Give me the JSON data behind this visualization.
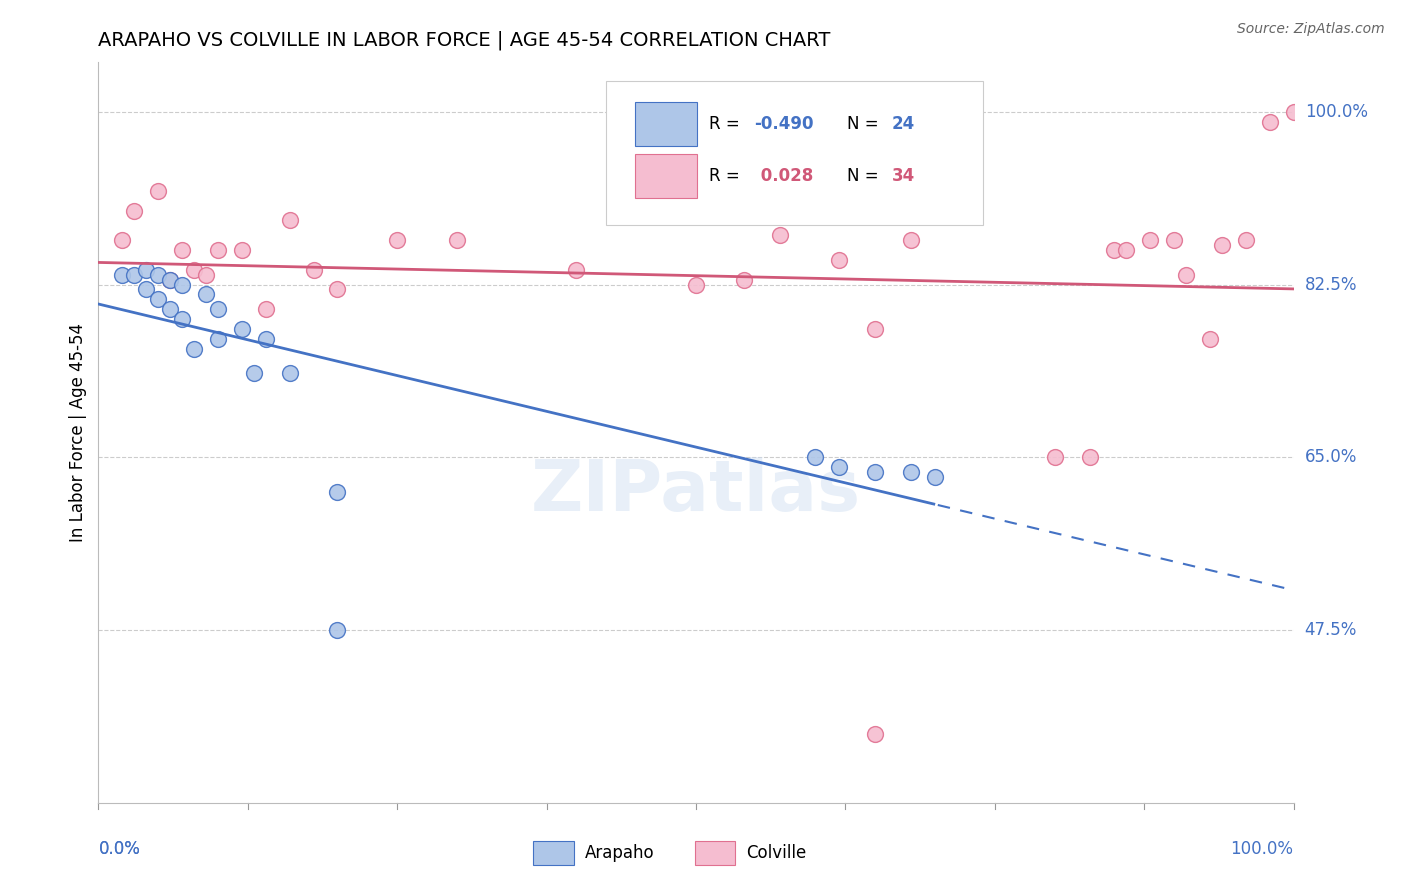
{
  "title": "ARAPAHO VS COLVILLE IN LABOR FORCE | AGE 45-54 CORRELATION CHART",
  "source": "Source: ZipAtlas.com",
  "ylabel": "In Labor Force | Age 45-54",
  "ytick_labels": [
    "100.0%",
    "82.5%",
    "65.0%",
    "47.5%"
  ],
  "ytick_values": [
    1.0,
    0.825,
    0.65,
    0.475
  ],
  "xlim": [
    0.0,
    1.0
  ],
  "ylim": [
    0.3,
    1.05
  ],
  "arapaho_color": "#aec6e8",
  "colville_color": "#f5bdd0",
  "arapaho_edge_color": "#4472c4",
  "colville_edge_color": "#e07090",
  "arapaho_line_color": "#4472c4",
  "colville_line_color": "#d05878",
  "R_arapaho": -0.49,
  "N_arapaho": 24,
  "R_colville": 0.028,
  "N_colville": 34,
  "watermark": "ZIPatlas",
  "arapaho_x": [
    0.02,
    0.03,
    0.04,
    0.04,
    0.05,
    0.05,
    0.06,
    0.06,
    0.07,
    0.07,
    0.08,
    0.09,
    0.1,
    0.1,
    0.12,
    0.13,
    0.14,
    0.16,
    0.2,
    0.6,
    0.62,
    0.65,
    0.68,
    0.7
  ],
  "arapaho_y": [
    0.835,
    0.835,
    0.84,
    0.82,
    0.835,
    0.81,
    0.83,
    0.8,
    0.825,
    0.79,
    0.76,
    0.815,
    0.8,
    0.77,
    0.78,
    0.735,
    0.77,
    0.735,
    0.615,
    0.65,
    0.64,
    0.635,
    0.635,
    0.63
  ],
  "colville_x": [
    0.02,
    0.03,
    0.05,
    0.06,
    0.07,
    0.08,
    0.09,
    0.1,
    0.12,
    0.14,
    0.16,
    0.18,
    0.2,
    0.25,
    0.3,
    0.4,
    0.5,
    0.54,
    0.57,
    0.62,
    0.65,
    0.68,
    0.8,
    0.83,
    0.85,
    0.86,
    0.88,
    0.9,
    0.91,
    0.93,
    0.94,
    0.96,
    0.98,
    1.0
  ],
  "colville_y": [
    0.87,
    0.9,
    0.92,
    0.83,
    0.86,
    0.84,
    0.835,
    0.86,
    0.86,
    0.8,
    0.89,
    0.84,
    0.82,
    0.87,
    0.87,
    0.84,
    0.825,
    0.83,
    0.875,
    0.85,
    0.78,
    0.87,
    0.65,
    0.65,
    0.86,
    0.86,
    0.87,
    0.87,
    0.835,
    0.77,
    0.865,
    0.87,
    0.99,
    1.0
  ],
  "arapaho_outlier_x": [
    0.2
  ],
  "arapaho_outlier_y": [
    0.475
  ],
  "colville_outlier_x": [
    0.65
  ],
  "colville_outlier_y": [
    0.37
  ],
  "title_fontsize": 14,
  "label_fontsize": 12,
  "legend_fontsize": 12
}
